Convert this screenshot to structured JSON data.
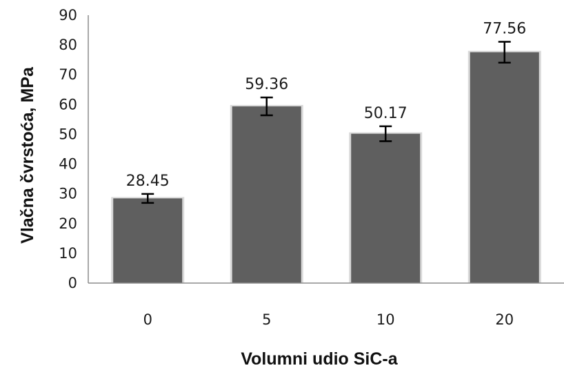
{
  "chart_data": {
    "type": "bar",
    "title": "",
    "xlabel": "Volumni udio SiC-a",
    "ylabel": "Vlačna čvrstoća, MPa",
    "categories": [
      "0",
      "5",
      "10",
      "20"
    ],
    "values": [
      28.45,
      59.36,
      50.17,
      77.56
    ],
    "data_labels": [
      "28.45",
      "59.36",
      "50.17",
      "77.56"
    ],
    "error": [
      1.5,
      3.0,
      2.5,
      3.5
    ],
    "ylim": [
      0,
      90
    ],
    "yticks": [
      "0",
      "10",
      "20",
      "30",
      "40",
      "50",
      "60",
      "70",
      "80",
      "90"
    ],
    "grid": false,
    "legend": "none",
    "colors": {
      "bar": "#5f5f5f",
      "bar_highlight": "#d9d9d9",
      "axis": "#8c8c8c",
      "error_bar": "#000000"
    }
  }
}
